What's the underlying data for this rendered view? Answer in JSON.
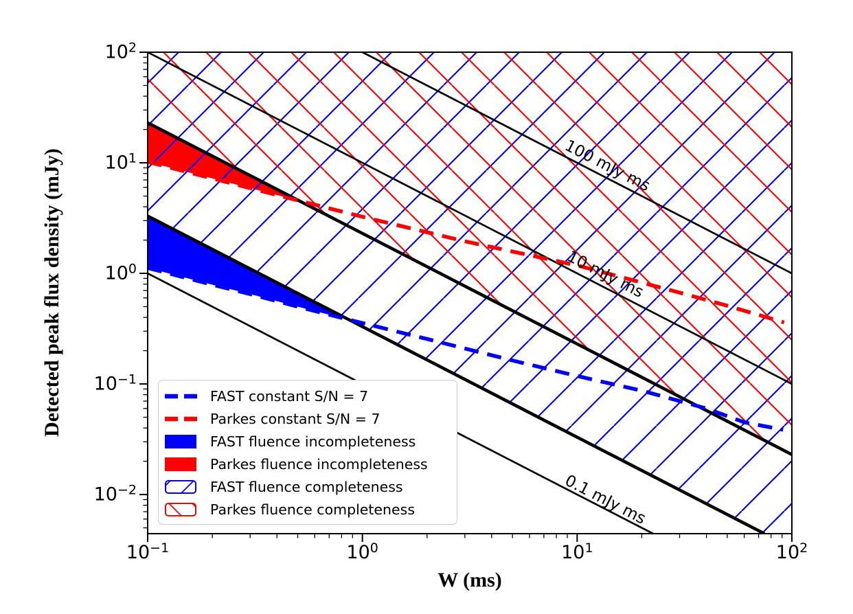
{
  "figure_title": "",
  "chart_data": {
    "type": "line",
    "title": "",
    "xlabel": "W (ms)",
    "ylabel": "Detected peak flux density (mJy)",
    "x_scale": "log",
    "y_scale": "log",
    "x_range": [
      0.1,
      100
    ],
    "y_range": [
      0.00443,
      100
    ],
    "grid": false,
    "colors": {
      "fast_blue": "#0000ff",
      "parkes_red": "#ff0000",
      "line_black": "#000000",
      "legend_border": "#cccccc",
      "background": "#ffffff"
    },
    "x_ticks": {
      "exponents": [
        -1,
        0,
        1,
        2
      ],
      "labels": [
        {
          "base": "10",
          "exp": "−1"
        },
        {
          "base": "10",
          "exp": "0"
        },
        {
          "base": "10",
          "exp": "1"
        },
        {
          "base": "10",
          "exp": "2"
        }
      ]
    },
    "y_ticks": {
      "exponents": [
        2,
        1,
        0,
        -1,
        -2
      ],
      "labels": [
        {
          "base": "10",
          "exp": "2"
        },
        {
          "base": "10",
          "exp": "1"
        },
        {
          "base": "10",
          "exp": "0"
        },
        {
          "base": "10",
          "exp": "−1"
        },
        {
          "base": "10",
          "exp": "−2"
        }
      ]
    },
    "fluence_lines": [
      {
        "name": "contour-100-mjyms",
        "fluence": 100,
        "style": "thin",
        "label": {
          "text": "100 mJy ms",
          "x": 13.8,
          "y": 9.3,
          "rotation": 27.2
        }
      },
      {
        "name": "contour-10-mjyms",
        "fluence": 10,
        "style": "thin",
        "label": {
          "text": "10 mJy ms",
          "x": 13.5,
          "y": 0.97,
          "rotation": 27.2
        }
      },
      {
        "name": "contour-0p1-mjyms",
        "fluence": 0.1,
        "style": "thin",
        "label": {
          "text": "0.1 mJy ms",
          "x": 13.5,
          "y": 0.0089,
          "rotation": 27.2
        }
      },
      {
        "name": "parkes-fluence-threshold",
        "fluence": 2.3,
        "style": "thick",
        "label": null
      },
      {
        "name": "fast-fluence-threshold",
        "fluence": 0.33,
        "style": "thick",
        "label": null
      }
    ],
    "sn_curves": [
      {
        "name": "fast-sn7",
        "color_key": "fast_blue",
        "points": [
          [
            0.1,
            1.12
          ],
          [
            0.2,
            0.79
          ],
          [
            0.3,
            0.65
          ],
          [
            0.5,
            0.5
          ],
          [
            0.87,
            0.38
          ],
          [
            2,
            0.255
          ],
          [
            5,
            0.163
          ],
          [
            10,
            0.118
          ],
          [
            13,
            0.105
          ],
          [
            20,
            0.087
          ],
          [
            40,
            0.06
          ],
          [
            60,
            0.045
          ],
          [
            91,
            0.0385
          ]
        ]
      },
      {
        "name": "parkes-sn7",
        "color_key": "parkes_red",
        "points": [
          [
            0.1,
            10.2
          ],
          [
            0.2,
            7.22
          ],
          [
            0.3,
            5.9
          ],
          [
            0.507,
            4.54
          ],
          [
            1,
            3.25
          ],
          [
            3,
            1.95
          ],
          [
            10,
            1.18
          ],
          [
            30,
            0.67
          ],
          [
            50,
            0.51
          ],
          [
            92,
            0.36
          ]
        ]
      }
    ],
    "fill_regions": [
      {
        "name": "parkes-fluence-incompleteness",
        "color_key": "parkes_red",
        "upper_fluence": 2.3,
        "curve": "parkes-sn7",
        "x_from": 0.1,
        "x_to": 0.507
      },
      {
        "name": "fast-fluence-incompleteness",
        "color_key": "fast_blue",
        "upper_fluence": 0.33,
        "curve": "fast-sn7",
        "x_from": 0.1,
        "x_to": 0.87
      }
    ],
    "hatch_regions": [
      {
        "name": "fast-fluence-completeness",
        "above_fluence": 0.33,
        "hatch": "/",
        "color_key": "fast_blue"
      },
      {
        "name": "parkes-fluence-completeness",
        "above_fluence": 2.3,
        "hatch": "\\",
        "color_key": "parkes_red"
      }
    ],
    "legend": {
      "entries": [
        {
          "label": "FAST constant S/N = 7",
          "handle": "dash",
          "color_key": "fast_blue"
        },
        {
          "label": "Parkes constant S/N = 7",
          "handle": "dash",
          "color_key": "parkes_red"
        },
        {
          "label": "FAST fluence incompleteness",
          "handle": "fill",
          "color_key": "fast_blue"
        },
        {
          "label": "Parkes fluence incompleteness",
          "handle": "fill",
          "color_key": "parkes_red"
        },
        {
          "label": "FAST fluence completeness",
          "handle": "hatch",
          "hatch": "/",
          "color_key": "fast_blue"
        },
        {
          "label": "Parkes fluence completeness",
          "handle": "hatch",
          "hatch": "\\",
          "color_key": "parkes_red"
        }
      ]
    }
  }
}
